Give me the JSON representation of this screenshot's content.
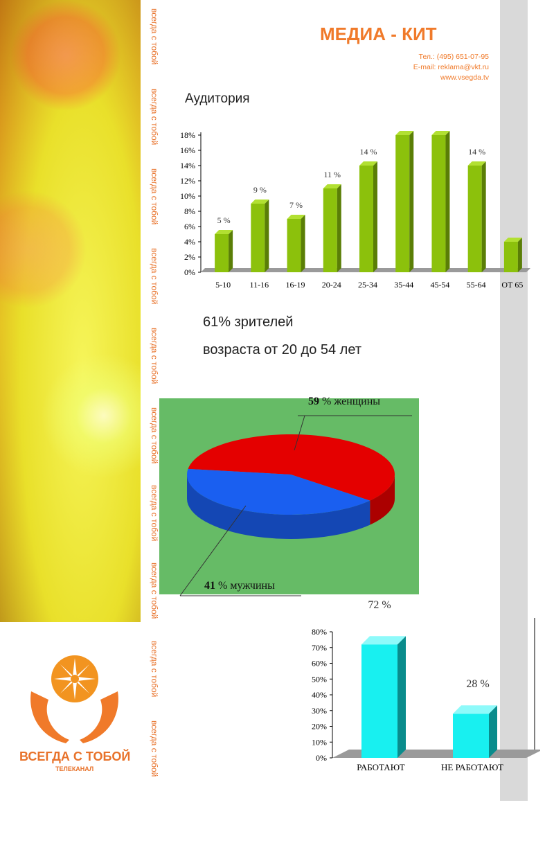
{
  "header": {
    "title": "МЕДИА - КИТ",
    "phone": "Тел.: (495) 651-07-95",
    "email": "E-mail: reklama@vkt.ru",
    "website": "www.vsegda.tv"
  },
  "sidebar": {
    "vertical_slogan": "всегда с тобой",
    "logo_text": "ВСЕГДА С ТОБОЙ",
    "logo_subtext": "ТЕЛЕКАНАЛ"
  },
  "section_title": "Аудитория",
  "summary": {
    "line1": "61% зрителей",
    "line2": "возраста от 20 до 54 лет"
  },
  "chart_data": [
    {
      "type": "bar",
      "categories": [
        "5-10",
        "11-16",
        "16-19",
        "20-24",
        "25-34",
        "35-44",
        "45-54",
        "55-64",
        "ОТ 65"
      ],
      "values": [
        5,
        9,
        7,
        11,
        14,
        18,
        18,
        14,
        4
      ],
      "data_labels": [
        "5 %",
        "9 %",
        "7 %",
        "11 %",
        "14 %",
        "",
        "",
        "14 %",
        ""
      ],
      "y_ticks": [
        "0%",
        "2%",
        "4%",
        "6%",
        "8%",
        "10%",
        "12%",
        "14%",
        "16%",
        "18%"
      ],
      "ylim": [
        0,
        18
      ],
      "colors": {
        "bar": "#8cc10c",
        "bar_side": "#5a7e06",
        "bar_top": "#b2e032"
      }
    },
    {
      "type": "pie",
      "slices": [
        {
          "name": "женщины",
          "value": 59,
          "pct_label": "59",
          "unit_label": "% женщины",
          "color": "#e40000"
        },
        {
          "name": "мужчины",
          "value": 41,
          "pct_label": "41",
          "unit_label": "% мужчины",
          "color": "#1a5ff0"
        }
      ],
      "background": "#66bb66"
    },
    {
      "type": "bar",
      "categories": [
        "РАБОТАЮТ",
        "НЕ РАБОТАЮТ"
      ],
      "values": [
        72,
        28
      ],
      "data_labels": [
        "72 %",
        "28 %"
      ],
      "y_ticks": [
        "0%",
        "10%",
        "20%",
        "30%",
        "40%",
        "50%",
        "60%",
        "70%",
        "80%"
      ],
      "ylim": [
        0,
        80
      ],
      "colors": {
        "bar": "#18f0f0",
        "bar_side": "#0a8c8c",
        "bar_top": "#8efafa"
      }
    }
  ]
}
